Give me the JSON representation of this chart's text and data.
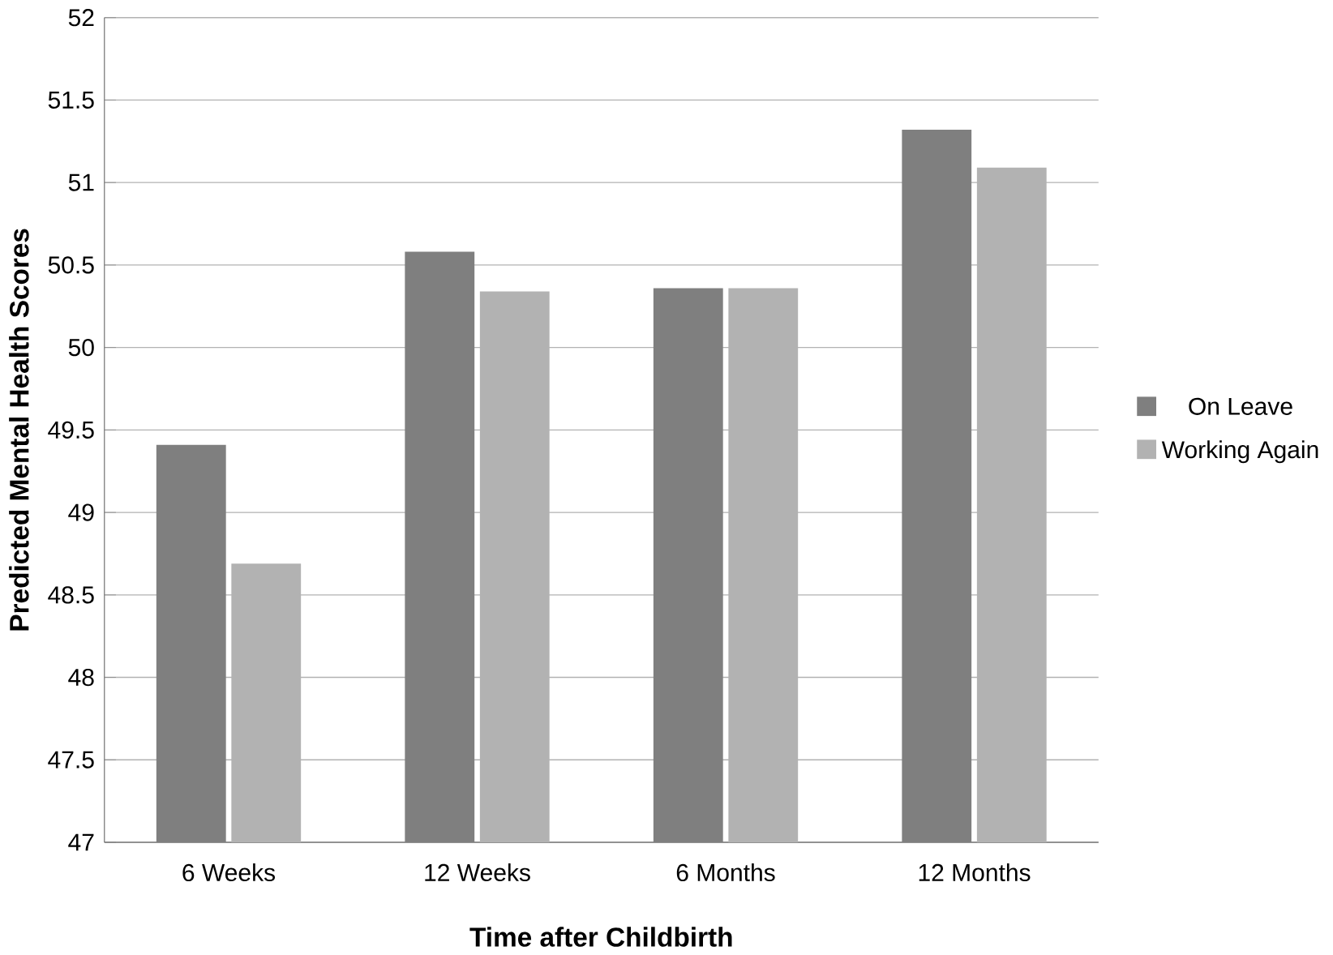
{
  "chart_data": {
    "type": "bar",
    "xlabel": "Time after Childbirth",
    "ylabel": "Predicted Mental Health Scores",
    "categories": [
      "6 Weeks",
      "12 Weeks",
      "6 Months",
      "12 Months"
    ],
    "series": [
      {
        "name": "On Leave",
        "color": "#7f7f7f",
        "values": [
          49.41,
          50.58,
          50.36,
          51.32
        ]
      },
      {
        "name": "Working Again",
        "color": "#b2b2b2",
        "values": [
          48.69,
          50.34,
          50.36,
          51.09
        ]
      }
    ],
    "ylim": [
      47,
      52
    ],
    "yticks": [
      47,
      47.5,
      48,
      48.5,
      49,
      49.5,
      50,
      50.5,
      51,
      51.5,
      52
    ],
    "grid": "y",
    "legend": "right"
  }
}
